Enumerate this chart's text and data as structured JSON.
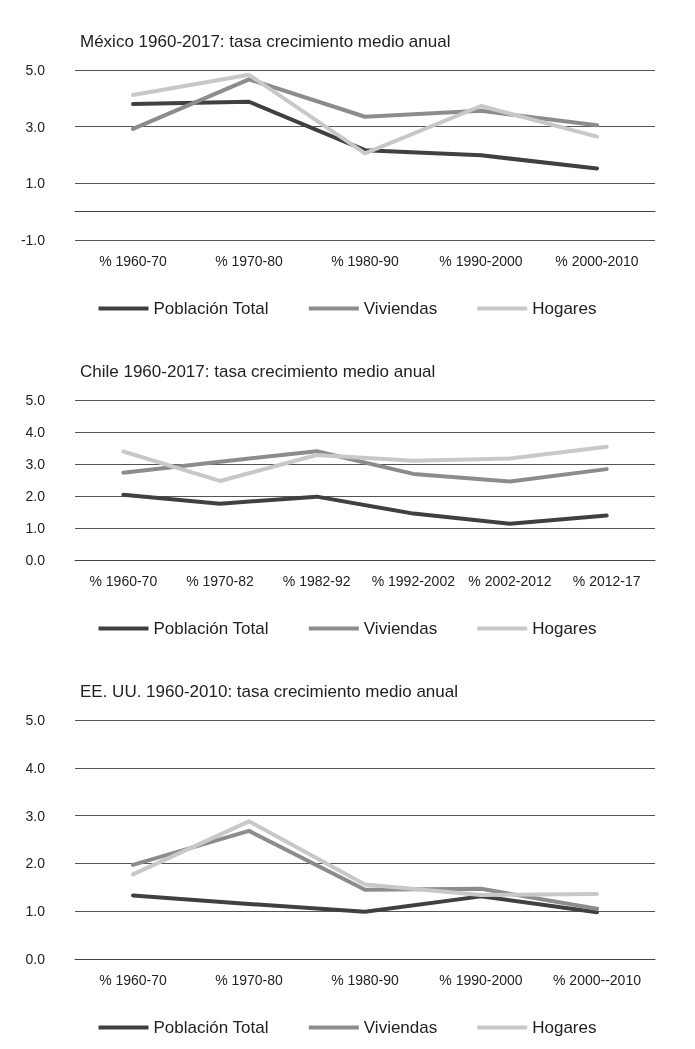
{
  "chart_data": [
    {
      "type": "line",
      "title": "México 1960-2017: tasa crecimiento medio anual",
      "categories": [
        "% 1960-70",
        "% 1970-80",
        "% 1980-90",
        "% 1990-2000",
        "% 2000-2010"
      ],
      "series": [
        {
          "name": "Población Total",
          "color": "#404040",
          "values": [
            3.8,
            3.88,
            2.17,
            1.99,
            1.52
          ]
        },
        {
          "name": "Viviendas",
          "color": "#8c8c8c",
          "values": [
            2.92,
            4.67,
            3.35,
            3.56,
            3.05
          ]
        },
        {
          "name": "Hogares",
          "color": "#c8c8c8",
          "values": [
            4.12,
            4.83,
            2.06,
            3.73,
            2.65
          ]
        }
      ],
      "ylim": [
        -1,
        5
      ],
      "yticks": [
        {
          "value": -1,
          "label": "-1.0"
        },
        {
          "value": 1,
          "label": "1.0"
        },
        {
          "value": 3,
          "label": "3.0"
        },
        {
          "value": 5,
          "label": "5.0"
        }
      ],
      "grid": "y",
      "legend": "bottom",
      "marker": "none",
      "line_style": "solid"
    },
    {
      "type": "line",
      "title": "Chile 1960-2017: tasa crecimiento medio anual",
      "categories": [
        "% 1960-70",
        "% 1970-82",
        "% 1982-92",
        "% 1992-2002",
        "% 2002-2012",
        "% 2012-17"
      ],
      "series": [
        {
          "name": "Población Total",
          "color": "#404040",
          "values": [
            2.04,
            1.76,
            1.98,
            1.45,
            1.13,
            1.39
          ]
        },
        {
          "name": "Viviendas",
          "color": "#8c8c8c",
          "values": [
            2.73,
            3.07,
            3.4,
            2.69,
            2.45,
            2.84
          ]
        },
        {
          "name": "Hogares",
          "color": "#c8c8c8",
          "values": [
            3.39,
            2.47,
            3.28,
            3.1,
            3.17,
            3.54
          ]
        }
      ],
      "ylim": [
        0,
        5
      ],
      "yticks": [
        {
          "value": 0,
          "label": "0.0"
        },
        {
          "value": 1,
          "label": "1.0"
        },
        {
          "value": 2,
          "label": "2.0"
        },
        {
          "value": 3,
          "label": "3.0"
        },
        {
          "value": 4,
          "label": "4.0"
        },
        {
          "value": 5,
          "label": "5.0"
        }
      ],
      "grid": "y",
      "legend": "bottom",
      "marker": "none",
      "line_style": "solid"
    },
    {
      "type": "line",
      "title": "EE. UU. 1960-2010: tasa crecimiento medio anual",
      "categories": [
        "% 1960-70",
        "% 1970-80",
        "% 1980-90",
        "% 1990-2000",
        "% 2000--2010"
      ],
      "series": [
        {
          "name": "Población Total",
          "color": "#404040",
          "values": [
            1.33,
            1.15,
            0.99,
            1.31,
            0.98
          ]
        },
        {
          "name": "Viviendas",
          "color": "#8c8c8c",
          "values": [
            1.97,
            2.68,
            1.45,
            1.47,
            1.05
          ]
        },
        {
          "name": "Hogares",
          "color": "#c8c8c8",
          "values": [
            1.77,
            2.88,
            1.56,
            1.34,
            1.36
          ]
        }
      ],
      "ylim": [
        0,
        5
      ],
      "yticks": [
        {
          "value": 0,
          "label": "0.0"
        },
        {
          "value": 1,
          "label": "1.0"
        },
        {
          "value": 2,
          "label": "2.0"
        },
        {
          "value": 3,
          "label": "3.0"
        },
        {
          "value": 4,
          "label": "4.0"
        },
        {
          "value": 5,
          "label": "5.0"
        }
      ],
      "grid": "y",
      "legend": "bottom",
      "marker": "none",
      "line_style": "solid"
    }
  ]
}
